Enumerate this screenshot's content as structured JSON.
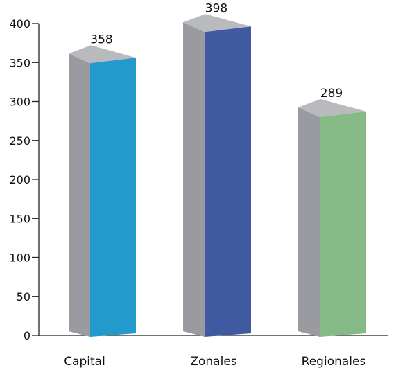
{
  "chart_data": {
    "type": "bar",
    "categories": [
      "Capital",
      "Zonales",
      "Regionales"
    ],
    "values": [
      358,
      398,
      289
    ],
    "data_labels": [
      "358",
      "398",
      "289"
    ],
    "title": "",
    "xlabel": "",
    "ylabel": "",
    "ylim": [
      0,
      400
    ],
    "yticks": [
      0,
      50,
      100,
      150,
      200,
      250,
      300,
      350,
      400
    ],
    "grid": false,
    "legend": "none",
    "style": "3d-column",
    "colors": {
      "bars": [
        "#2399cc",
        "#3f5aa0",
        "#85b985"
      ],
      "side": "#9a9ba0",
      "top": "#b9babe",
      "axis": "#222222"
    }
  }
}
